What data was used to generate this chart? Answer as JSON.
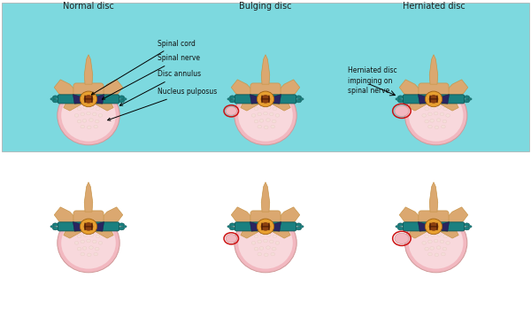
{
  "bg_color": "#ffffff",
  "top_panel_bg": "#7dd9df",
  "title_normal": "Normal disc",
  "title_bulging": "Bulging disc",
  "title_herniated": "Herniated disc",
  "label_spinal_cord": "Spinal cord",
  "label_spinal_nerve": "Spinal nerve",
  "label_disc_annulus": "Disc annulus",
  "label_nucleus": "Nucleus pulposus",
  "label_herniated": "Herniated disc\nimpinging on\nspinal nerve",
  "disc_outer_color": "#f2b8c0",
  "disc_inner_color": "#f8d8dc",
  "vertebra_color": "#dba870",
  "vertebra_edge": "#c8954a",
  "vertebra_dark": "#c07840",
  "nerve_color": "#1a8080",
  "nerve_edge": "#0d5555",
  "spinal_cord_color": "#e8a030",
  "spinal_cord_inner": "#8b4010",
  "dark_wing_color": "#2a2560",
  "red_circle_color": "#cc1111",
  "bulge_color": "#f2b8c0",
  "text_color": "#222222",
  "ann_color": "#111111",
  "bubble_fill": "#f5ddd8",
  "bubble_edge": "#e8c8c4"
}
